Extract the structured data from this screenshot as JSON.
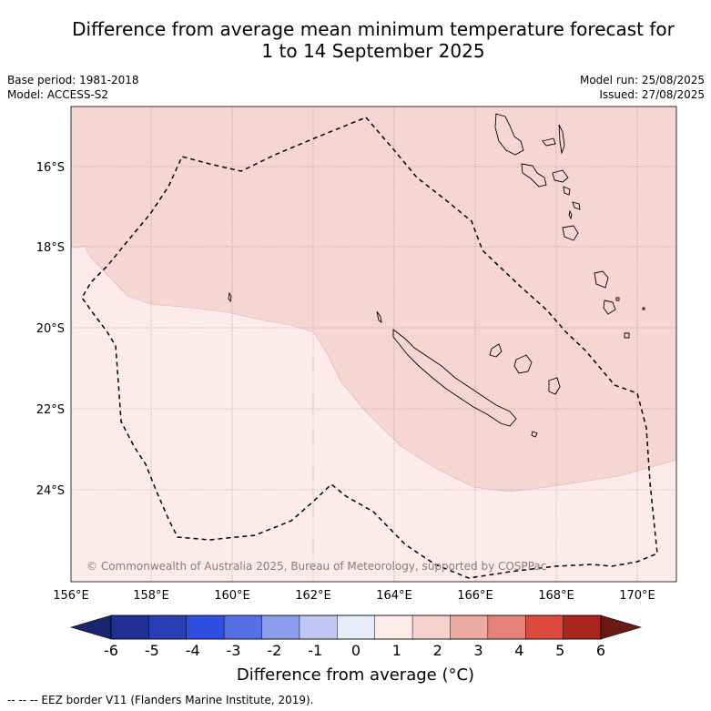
{
  "header": {
    "title_line1": "Difference from average mean minimum temperature forecast for",
    "title_line2": "1 to 14 September 2025",
    "base_period": "Base period: 1981-2018",
    "model": "Model: ACCESS-S2",
    "model_run": "Model run: 25/08/2025",
    "issued": "Issued: 27/08/2025"
  },
  "map": {
    "longitude_labels": [
      "156°E",
      "158°E",
      "160°E",
      "162°E",
      "164°E",
      "166°E",
      "168°E",
      "170°E"
    ],
    "latitude_labels": [
      "16°S",
      "18°S",
      "20°S",
      "22°S",
      "24°S"
    ],
    "copyright": "© Commonwealth of Australia 2025, Bureau of Meteorology, supported by COSPPac",
    "colors": {
      "anomaly_0_to_1": "#fcebea",
      "anomaly_1_to_2": "#f5d6d3",
      "gridline": "#8a7a7a",
      "eez_border": "#000000",
      "coastline": "#000000"
    }
  },
  "colorbar": {
    "tick_labels": [
      "-6",
      "-5",
      "-4",
      "-3",
      "-2",
      "-1",
      "0",
      "1",
      "2",
      "3",
      "4",
      "5",
      "6"
    ],
    "colors": [
      "#1f2f95",
      "#2a3fb5",
      "#2f4fe0",
      "#5570e6",
      "#8a9cec",
      "#c0c7f4",
      "#e8ecfa",
      "#fdece8",
      "#f6d2cd",
      "#eeaba5",
      "#e5837a",
      "#dc4a3e",
      "#ac2620"
    ],
    "under_color": "#1a2570",
    "over_color": "#6a1a14",
    "label": "Difference from average (°C)"
  },
  "footer": {
    "legend_text": "--  --  -- EEZ border V11 (Flanders Marine Institute, 2019)."
  }
}
